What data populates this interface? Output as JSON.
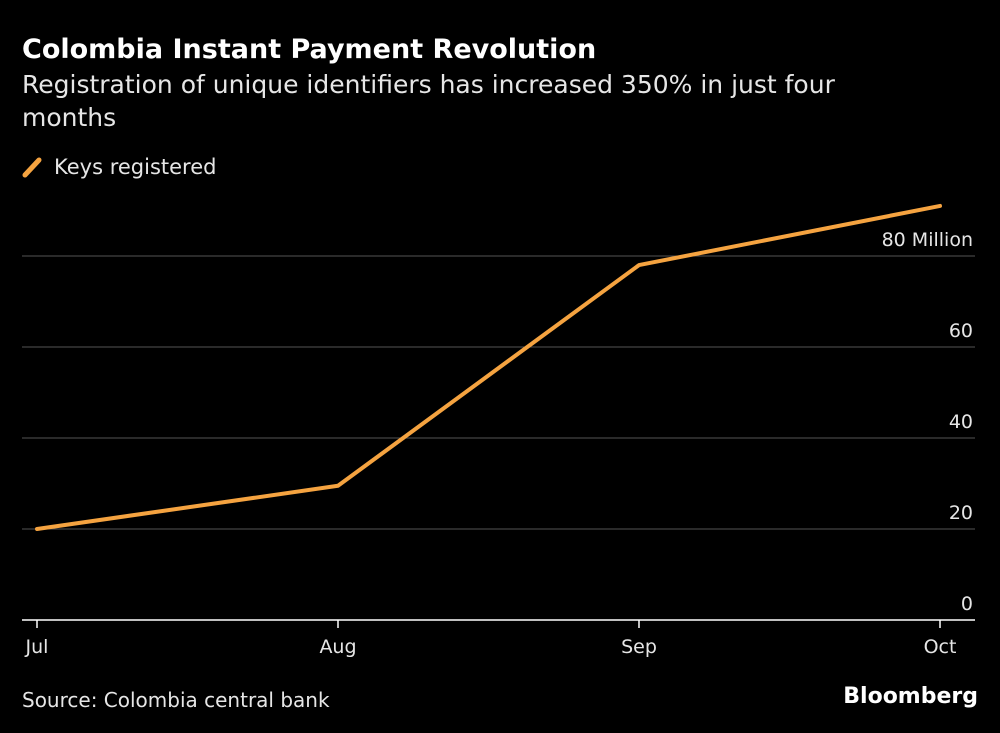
{
  "colors": {
    "background": "#000000",
    "line": "#f5a340",
    "grid": "#555555",
    "axis": "#ffffff",
    "text": "#ffffff"
  },
  "chart_data": {
    "type": "line",
    "title": "Colombia Instant Payment Revolution",
    "subtitle": "Registration of unique identifiers has increased 350% in just four months",
    "x": [
      "Jul",
      "Aug",
      "Sep",
      "Oct"
    ],
    "series": [
      {
        "name": "Keys registered",
        "values": [
          20,
          29.5,
          78,
          91
        ]
      }
    ],
    "yticks": [
      0,
      20,
      40,
      60,
      80
    ],
    "ytick_labels": [
      "0",
      "20",
      "40",
      "60",
      "80 Million"
    ],
    "ylim": [
      0,
      91
    ],
    "xlabel": "",
    "ylabel": "",
    "grid": true,
    "legend": "top-left"
  },
  "footer": {
    "source": "Source: Colombia central bank",
    "brand": "Bloomberg"
  },
  "icons": {
    "legend_swatch": "diagonal-line-icon"
  }
}
